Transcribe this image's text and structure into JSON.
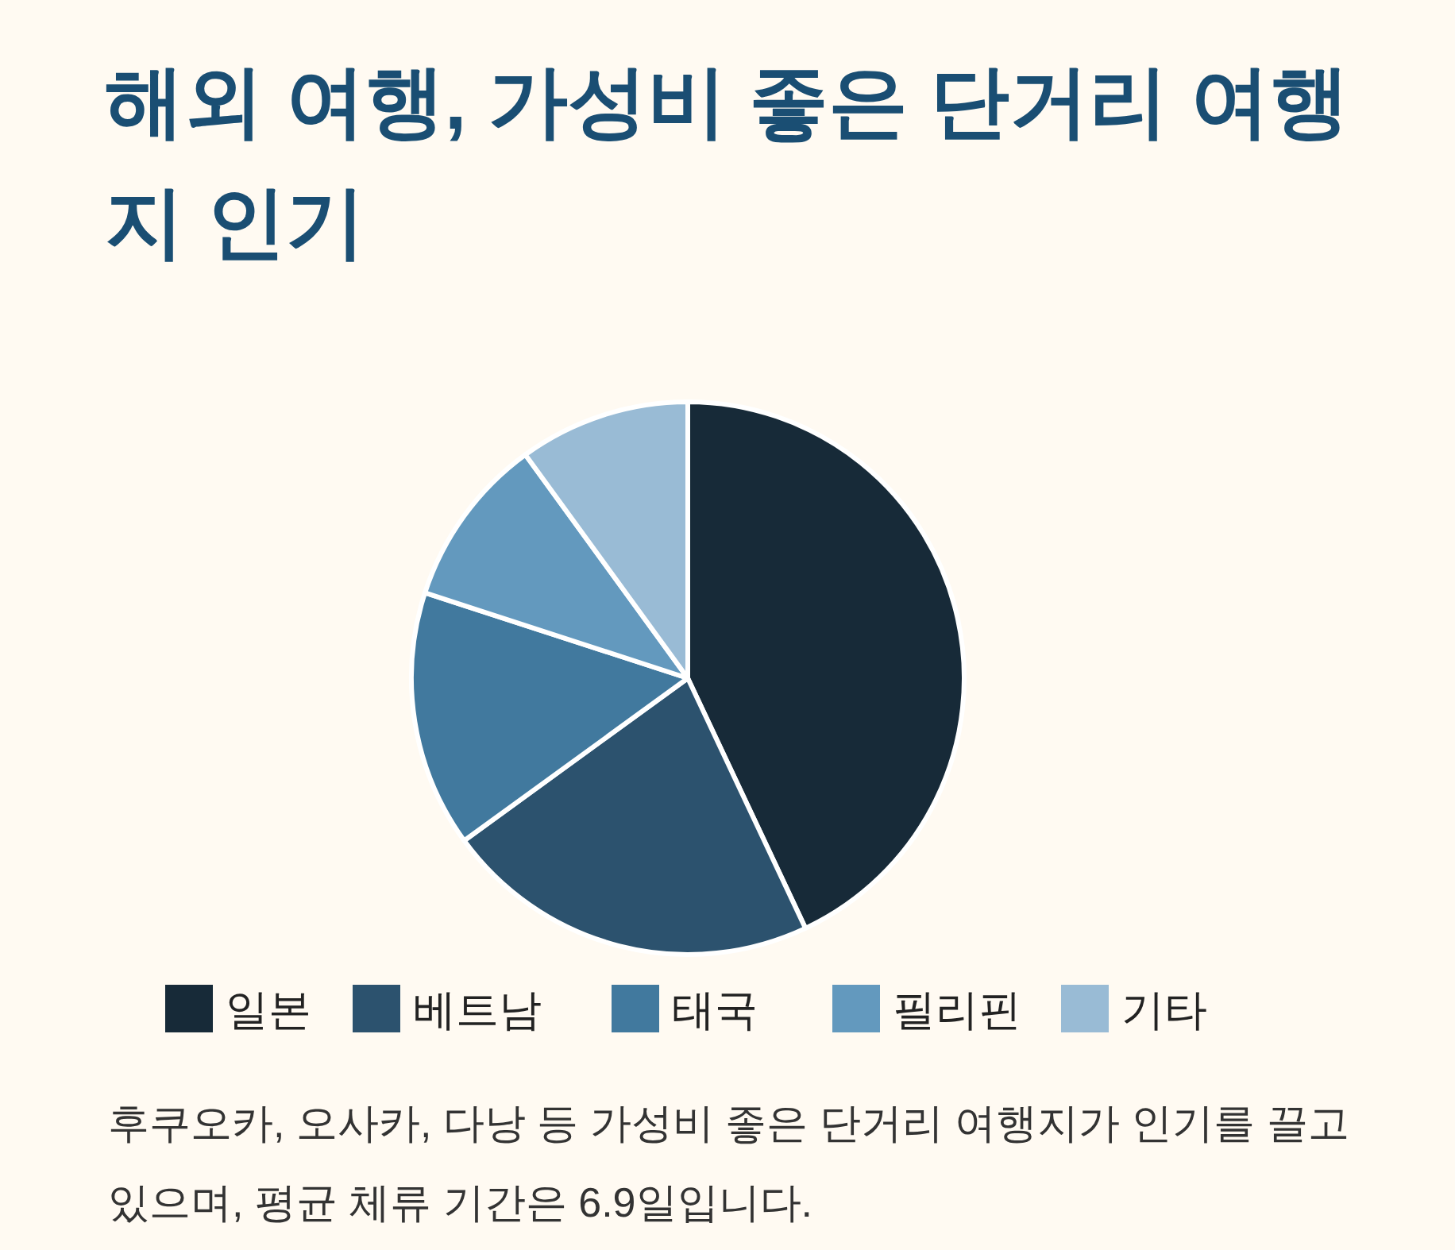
{
  "chart_data": {
    "type": "pie",
    "title": "해외 여행, 가성비 좋은 단거리 여행지 인기",
    "categories": [
      "일본",
      "베트남",
      "태국",
      "필리핀",
      "기타"
    ],
    "values": [
      43,
      22,
      15,
      10,
      10
    ],
    "colors": [
      "#172a38",
      "#2c526e",
      "#41799e",
      "#6399be",
      "#99bbd5"
    ],
    "legend": "bottom",
    "annotations": [
      "후쿠오카, 오사카, 다낭 등 가성비 좋은 단거리 여행지가 인기를 끌고 있으며, 평균 체류 기간은 6.9일입니다."
    ]
  }
}
